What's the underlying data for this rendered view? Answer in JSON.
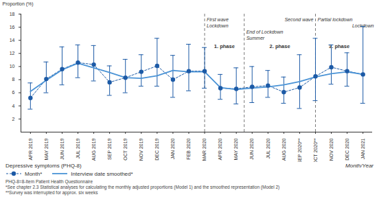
{
  "chart_data": {
    "type": "line",
    "y_label": "Proportion (%)",
    "x_label": "Month/Year",
    "legend_title": "Depressive symptoms (PHQ-8)",
    "categories": [
      "APR 2019",
      "MAY 2019",
      "JUN 2019",
      "JUL 2019",
      "AUG 2019",
      "SEP 2019",
      "OCT 2019",
      "NOV 2019",
      "DEC 2019",
      "JAN 2020",
      "FEB 2020",
      "MAR 2020",
      "APR 2020",
      "MAY 2020",
      "JUN 2020",
      "JUL 2020",
      "AUG 2020",
      "SEP 2020**",
      "OCT 2020**",
      "NOV 2020",
      "DEC 2020",
      "JAN 2021"
    ],
    "series": [
      {
        "name": "Month*",
        "color": "#1c5aa6",
        "marker": "circle",
        "line_style": "dashed",
        "values": [
          5.2,
          8.1,
          9.6,
          10.6,
          10.3,
          7.6,
          8.3,
          9.2,
          10.1,
          8.0,
          9.3,
          9.3,
          6.7,
          6.6,
          6.9,
          7.1,
          6.1,
          6.8,
          8.5,
          9.9,
          9.3,
          8.8
        ],
        "ci_lower": [
          3.5,
          6.0,
          7.2,
          8.3,
          7.8,
          5.6,
          6.0,
          7.0,
          7.0,
          5.3,
          6.3,
          6.7,
          5.0,
          4.3,
          4.5,
          5.3,
          4.4,
          3.6,
          4.8,
          7.3,
          7.0,
          4.4
        ],
        "ci_upper": [
          7.5,
          10.7,
          13.0,
          13.3,
          13.2,
          10.1,
          11.1,
          11.8,
          14.3,
          11.7,
          13.4,
          12.9,
          8.8,
          9.8,
          10.0,
          9.4,
          8.4,
          11.8,
          14.3,
          13.3,
          12.1,
          16.1
        ]
      },
      {
        "name": "Interview date smoothed*",
        "color": "#4a93d6",
        "line_style": "solid",
        "values": [
          6.2,
          7.9,
          9.5,
          10.5,
          9.8,
          9.1,
          8.3,
          8.2,
          8.6,
          9.4,
          9.2,
          9.2,
          6.8,
          6.5,
          6.7,
          6.9,
          7.2,
          7.7,
          8.4,
          8.9,
          9.2,
          8.8
        ]
      }
    ],
    "ylim": [
      0,
      18
    ],
    "yticks": [
      2,
      4,
      6,
      8,
      10,
      12,
      14,
      16,
      18
    ],
    "grid": false,
    "period_lines": [
      {
        "at": "MAR 2020",
        "labels": [
          "First wave",
          "Lockdown"
        ]
      },
      {
        "between": [
          "MAY 2020",
          "JUN 2020"
        ],
        "labels": [
          "End of Lockdown",
          "Summer"
        ]
      },
      {
        "at": "OCT 2020**",
        "labels": [
          "Second wave",
          "Partial lockdown"
        ]
      }
    ],
    "annotations": [
      {
        "at": "JAN 2021",
        "text": "Lockdown"
      }
    ],
    "phases": [
      "1. phase",
      "2. phase",
      "3. phase"
    ],
    "notes": [
      "PHQ-8=8-Item Patient Health Questionnaire",
      "*See chapter 2.3 Statistical analyses for calculating the monthly adjusted proportions (Model 1) and the smoothed representation (Model 2)",
      "**Survey was interrupted for approx. six weeks"
    ]
  }
}
